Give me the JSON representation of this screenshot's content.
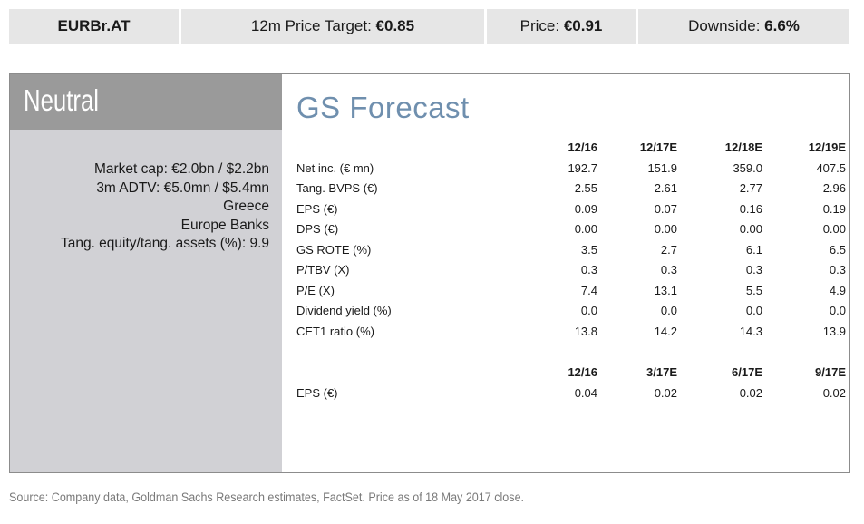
{
  "header": {
    "ticker": "EURBr.AT",
    "price_target_label": "12m Price Target:",
    "price_target_value": "€0.85",
    "price_label": "Price:",
    "price_value": "€0.91",
    "downside_label": "Downside:",
    "downside_value": "6.6%"
  },
  "rating": "Neutral",
  "facts": [
    "Market cap: €2.0bn / $2.2bn",
    "3m ADTV: €5.0mn / $5.4mn",
    "Greece",
    "Europe Banks",
    "Tang. equity/tang. assets (%): 9.9"
  ],
  "forecast_title": "GS Forecast",
  "annual": {
    "columns": [
      "12/16",
      "12/17E",
      "12/18E",
      "12/19E"
    ],
    "rows": [
      {
        "label": "Net inc. (€ mn)",
        "values": [
          "192.7",
          "151.9",
          "359.0",
          "407.5"
        ]
      },
      {
        "label": "Tang. BVPS (€)",
        "values": [
          "2.55",
          "2.61",
          "2.77",
          "2.96"
        ]
      },
      {
        "label": "EPS (€)",
        "values": [
          "0.09",
          "0.07",
          "0.16",
          "0.19"
        ]
      },
      {
        "label": "DPS (€)",
        "values": [
          "0.00",
          "0.00",
          "0.00",
          "0.00"
        ]
      },
      {
        "label": "GS ROTE (%)",
        "values": [
          "3.5",
          "2.7",
          "6.1",
          "6.5"
        ]
      },
      {
        "label": "P/TBV (X)",
        "values": [
          "0.3",
          "0.3",
          "0.3",
          "0.3"
        ]
      },
      {
        "label": "P/E (X)",
        "values": [
          "7.4",
          "13.1",
          "5.5",
          "4.9"
        ]
      },
      {
        "label": "Dividend yield (%)",
        "values": [
          "0.0",
          "0.0",
          "0.0",
          "0.0"
        ]
      },
      {
        "label": "CET1 ratio (%)",
        "values": [
          "13.8",
          "14.2",
          "14.3",
          "13.9"
        ]
      }
    ]
  },
  "quarterly": {
    "columns": [
      "12/16",
      "3/17E",
      "6/17E",
      "9/17E"
    ],
    "rows": [
      {
        "label": "EPS (€)",
        "values": [
          "0.04",
          "0.02",
          "0.02",
          "0.02"
        ]
      }
    ]
  },
  "source": "Source: Company data, Goldman Sachs Research estimates, FactSet. Price as of 18 May 2017 close."
}
